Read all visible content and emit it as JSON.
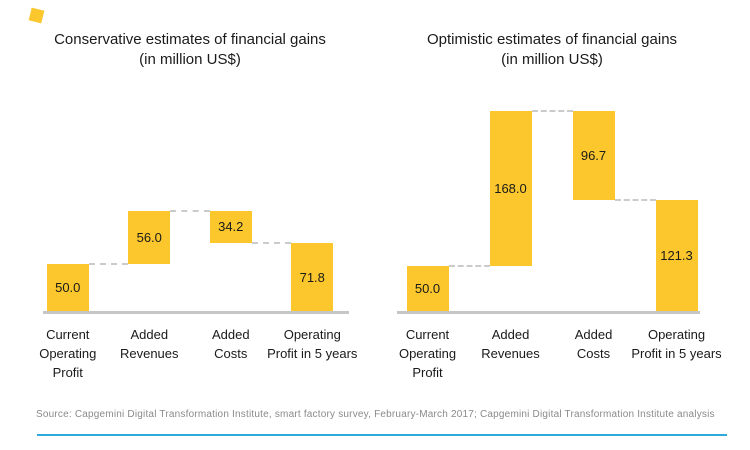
{
  "page": {
    "background": "#ffffff",
    "accent_yellow": "#FBC72D",
    "baseline_gray": "#C6C6C6",
    "connector_gray": "#CBCBCB",
    "footer_rule_blue": "#2EA9DC",
    "text_black": "#1a1a1a",
    "source_gray": "#8A8A8A"
  },
  "chart_data": [
    {
      "type": "bar",
      "subtype": "waterfall",
      "title": "Conservative estimates of financial gains",
      "subtitle": "(in million US$)",
      "unit": "million US$",
      "grid": false,
      "legend": "none",
      "connector_style": "dashed",
      "categories": [
        "Current Operating Profit",
        "Added Revenues",
        "Added Costs",
        "Operating Profit in 5 years"
      ],
      "values": [
        50.0,
        56.0,
        34.2,
        71.8
      ],
      "bars": [
        {
          "label_lines": [
            "Current",
            "Operating",
            "Profit"
          ],
          "value": 50.0,
          "display": "50.0",
          "kind": "base"
        },
        {
          "label_lines": [
            "Added",
            "Revenues"
          ],
          "value": 56.0,
          "display": "56.0",
          "kind": "increase"
        },
        {
          "label_lines": [
            "Added",
            "Costs"
          ],
          "value": 34.2,
          "display": "34.2",
          "kind": "decrease"
        },
        {
          "label_lines": [
            "Operating",
            "Profit in 5 years"
          ],
          "value": 71.8,
          "display": "71.8",
          "kind": "total"
        }
      ],
      "bar_color": "#FBC72D",
      "value_label_color": "#1a1a1a",
      "baseline_value": 0
    },
    {
      "type": "bar",
      "subtype": "waterfall",
      "title": "Optimistic estimates of financial gains",
      "subtitle": "(in million US$)",
      "unit": "million US$",
      "grid": false,
      "legend": "none",
      "connector_style": "dashed",
      "categories": [
        "Current Operating Profit",
        "Added Revenues",
        "Added Costs",
        "Operating Profit in 5 years"
      ],
      "values": [
        50.0,
        168.0,
        96.7,
        121.3
      ],
      "bars": [
        {
          "label_lines": [
            "Current",
            "Operating",
            "Profit"
          ],
          "value": 50.0,
          "display": "50.0",
          "kind": "base"
        },
        {
          "label_lines": [
            "Added",
            "Revenues"
          ],
          "value": 168.0,
          "display": "168.0",
          "kind": "increase"
        },
        {
          "label_lines": [
            "Added",
            "Costs"
          ],
          "value": 96.7,
          "display": "96.7",
          "kind": "decrease"
        },
        {
          "label_lines": [
            "Operating",
            "Profit in 5 years"
          ],
          "value": 121.3,
          "display": "121.3",
          "kind": "total"
        }
      ],
      "bar_color": "#FBC72D",
      "value_label_color": "#1a1a1a",
      "baseline_value": 0
    }
  ],
  "footer": {
    "source": "Source: Capgemini Digital Transformation Institute, smart factory survey, February-March 2017; Capgemini Digital Transformation Institute analysis"
  }
}
